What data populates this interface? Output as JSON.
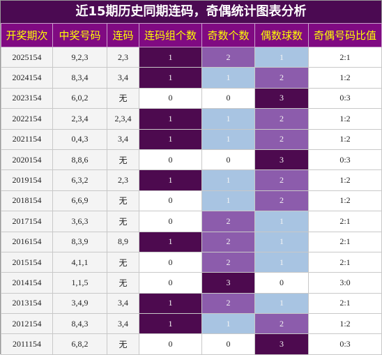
{
  "title": "近15期历史同期连码，奇偶统计图表分析",
  "table": {
    "headers": [
      "开奖期次",
      "中奖号码",
      "连码",
      "连码组个数",
      "奇数个数",
      "偶数球数",
      "奇偶号码比值"
    ],
    "column_colors": {
      "3": [
        "#ffffff",
        "#4d0a4f"
      ],
      "4": [
        "#ffffff",
        "#a8c4e2",
        "#8c5cac",
        "#4d0a4f"
      ],
      "5": [
        "#ffffff",
        "#a8c4e2",
        "#8c5cac",
        "#4d0a4f"
      ]
    },
    "rows": [
      [
        "2025154",
        "9,2,3",
        "2,3",
        1,
        2,
        1,
        "2:1"
      ],
      [
        "2024154",
        "8,3,4",
        "3,4",
        1,
        1,
        2,
        "1:2"
      ],
      [
        "2023154",
        "6,0,2",
        "无",
        0,
        0,
        3,
        "0:3"
      ],
      [
        "2022154",
        "2,3,4",
        "2,3,4",
        1,
        1,
        2,
        "1:2"
      ],
      [
        "2021154",
        "0,4,3",
        "3,4",
        1,
        1,
        2,
        "1:2"
      ],
      [
        "2020154",
        "8,8,6",
        "无",
        0,
        0,
        3,
        "0:3"
      ],
      [
        "2019154",
        "6,3,2",
        "2,3",
        1,
        1,
        2,
        "1:2"
      ],
      [
        "2018154",
        "6,6,9",
        "无",
        0,
        1,
        2,
        "1:2"
      ],
      [
        "2017154",
        "3,6,3",
        "无",
        0,
        2,
        1,
        "2:1"
      ],
      [
        "2016154",
        "8,3,9",
        "8,9",
        1,
        2,
        1,
        "2:1"
      ],
      [
        "2015154",
        "4,1,1",
        "无",
        0,
        2,
        1,
        "2:1"
      ],
      [
        "2014154",
        "1,1,5",
        "无",
        0,
        3,
        0,
        "3:0"
      ],
      [
        "2013154",
        "3,4,9",
        "3,4",
        1,
        2,
        1,
        "2:1"
      ],
      [
        "2012154",
        "8,4,3",
        "3,4",
        1,
        1,
        2,
        "1:2"
      ],
      [
        "2011154",
        "6,8,2",
        "无",
        0,
        0,
        3,
        "0:3"
      ]
    ]
  }
}
